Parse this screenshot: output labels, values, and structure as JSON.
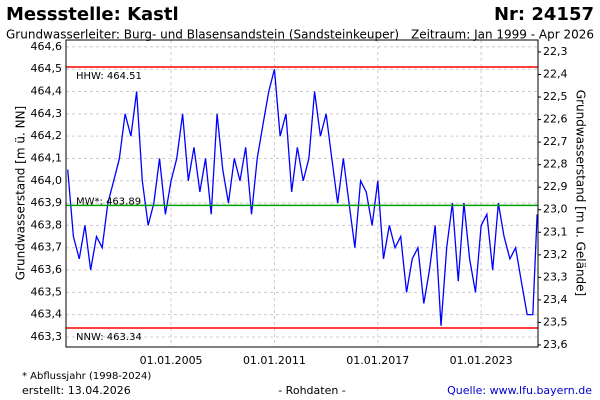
{
  "chart_data": {
    "type": "line",
    "title": "Messstelle: Kastl",
    "title_right": "Nr: 24157",
    "subtitle": "Grundwasserleiter:  Burg- und Blasensandstein (Sandsteinkeuper)",
    "subtitle_right": "Zeitraum: Jan 1999 - Apr 2026",
    "ylabel": "Grundwasserstand [m ü. NN]",
    "y2label": "Grundwasserstand [m u. Gelände]",
    "footnote": "* Abflussjahr (1998-2024)",
    "created": "erstellt:  13.04.2026",
    "caption": "- Rohdaten -",
    "source": "Quelle: www.lfu.bayern.de",
    "x": [
      1999,
      1999.33,
      1999.67,
      2000,
      2000.33,
      2000.67,
      2001,
      2001.33,
      2001.67,
      2002,
      2002.33,
      2002.67,
      2003,
      2003.33,
      2003.67,
      2004,
      2004.33,
      2004.67,
      2005,
      2005.33,
      2005.67,
      2006,
      2006.33,
      2006.67,
      2007,
      2007.33,
      2007.67,
      2008,
      2008.33,
      2008.67,
      2009,
      2009.33,
      2009.67,
      2010,
      2010.33,
      2010.67,
      2011,
      2011.33,
      2011.67,
      2012,
      2012.33,
      2012.67,
      2013,
      2013.33,
      2013.67,
      2014,
      2014.33,
      2014.67,
      2015,
      2015.33,
      2015.67,
      2016,
      2016.33,
      2016.67,
      2017,
      2017.33,
      2017.67,
      2018,
      2018.33,
      2018.67,
      2019,
      2019.33,
      2019.67,
      2020,
      2020.33,
      2020.67,
      2021,
      2021.33,
      2021.67,
      2022,
      2022.33,
      2022.67,
      2023,
      2023.33,
      2023.67,
      2024,
      2024.33,
      2024.67,
      2025,
      2025.33,
      2025.67,
      2026,
      2026.25
    ],
    "series": [
      {
        "color": "#0000ff",
        "values": [
          464.05,
          463.75,
          463.65,
          463.8,
          463.6,
          463.75,
          463.7,
          463.9,
          464.0,
          464.1,
          464.3,
          464.2,
          464.4,
          464.0,
          463.8,
          463.9,
          464.1,
          463.85,
          464.0,
          464.1,
          464.3,
          464.0,
          464.15,
          463.95,
          464.1,
          463.85,
          464.3,
          464.05,
          463.9,
          464.1,
          464.0,
          464.15,
          463.85,
          464.1,
          464.25,
          464.4,
          464.5,
          464.2,
          464.3,
          463.95,
          464.15,
          464.0,
          464.1,
          464.4,
          464.2,
          464.3,
          464.1,
          463.9,
          464.1,
          463.9,
          463.7,
          464.0,
          463.95,
          463.8,
          464.0,
          463.65,
          463.8,
          463.7,
          463.75,
          463.5,
          463.65,
          463.7,
          463.45,
          463.6,
          463.8,
          463.35,
          463.7,
          463.9,
          463.55,
          463.9,
          463.65,
          463.5,
          463.8,
          463.85,
          463.6,
          463.9,
          463.75,
          463.65,
          463.7,
          463.55,
          463.4,
          463.4,
          463.85
        ]
      }
    ],
    "xlim": [
      1998.9,
      2026.3
    ],
    "xticks": [
      {
        "value": 2005,
        "label": "01.01.2005"
      },
      {
        "value": 2011,
        "label": "01.01.2011"
      },
      {
        "value": 2017,
        "label": "01.01.2017"
      },
      {
        "value": 2023,
        "label": "01.01.2023"
      }
    ],
    "ylim": [
      463.255,
      464.631
    ],
    "yticks": [
      {
        "value": 464.6,
        "label": "464,6"
      },
      {
        "value": 464.5,
        "label": "464,5"
      },
      {
        "value": 464.4,
        "label": "464,4"
      },
      {
        "value": 464.3,
        "label": "464,3"
      },
      {
        "value": 464.2,
        "label": "464,2"
      },
      {
        "value": 464.1,
        "label": "464,1"
      },
      {
        "value": 464.0,
        "label": "464,0"
      },
      {
        "value": 463.9,
        "label": "463,9"
      },
      {
        "value": 463.8,
        "label": "463,8"
      },
      {
        "value": 463.7,
        "label": "463,7"
      },
      {
        "value": 463.6,
        "label": "463,6"
      },
      {
        "value": 463.5,
        "label": "463,5"
      },
      {
        "value": 463.4,
        "label": "463,4"
      },
      {
        "value": 463.3,
        "label": "463,3"
      }
    ],
    "y2lim": [
      23.609,
      22.247
    ],
    "y2_inverted": true,
    "y2ticks": [
      {
        "value": 22.3,
        "label": "22,3"
      },
      {
        "value": 22.4,
        "label": "22,4"
      },
      {
        "value": 22.5,
        "label": "22,5"
      },
      {
        "value": 22.6,
        "label": "22,6"
      },
      {
        "value": 22.7,
        "label": "22,7"
      },
      {
        "value": 22.8,
        "label": "22,8"
      },
      {
        "value": 22.9,
        "label": "22,9"
      },
      {
        "value": 23.0,
        "label": "23,0"
      },
      {
        "value": 23.1,
        "label": "23,1"
      },
      {
        "value": 23.2,
        "label": "23,2"
      },
      {
        "value": 23.3,
        "label": "23,3"
      },
      {
        "value": 23.4,
        "label": "23,4"
      },
      {
        "value": 23.5,
        "label": "23,5"
      },
      {
        "value": 23.6,
        "label": "23,6"
      }
    ],
    "grid": true,
    "reference_lines": [
      {
        "label": "HHW: 464.51",
        "value": 464.51,
        "color": "#ff0000"
      },
      {
        "label": "MW*: 463.89",
        "value": 463.89,
        "color": "#00a000"
      },
      {
        "label": "NNW: 463.34",
        "value": 463.34,
        "color": "#ff0000"
      }
    ]
  }
}
